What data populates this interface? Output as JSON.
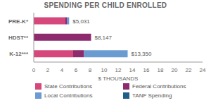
{
  "chart_data": {
    "type": "bar",
    "title": "SPENDING PER CHILD ENROLLED",
    "orientation": "horizontal",
    "stacked": true,
    "categories": [
      "PRE-K*",
      "HDST**",
      "K-12***"
    ],
    "series": [
      {
        "name": "State Contributions",
        "color": "#d6477b",
        "values": [
          4.5,
          0,
          5.6
        ]
      },
      {
        "name": "Federal Contributions",
        "color": "#8e2a6e",
        "values": [
          0.2,
          8.147,
          1.55
        ]
      },
      {
        "name": "Local Contributions",
        "color": "#6a9bd1",
        "values": [
          0.331,
          0,
          6.2
        ]
      },
      {
        "name": "TANF Spending",
        "color": "#1f5f8b",
        "values": [
          0,
          0,
          0
        ]
      }
    ],
    "totals": [
      5.031,
      8.147,
      13.35
    ],
    "total_labels": [
      "$5,031",
      "$8,147",
      "$13,350"
    ],
    "data_labels": true,
    "xlabel": "$ THOUSANDS",
    "xlim": [
      0,
      24
    ],
    "xticks": [
      0,
      2,
      4,
      6,
      8,
      10,
      12,
      14,
      16,
      18,
      20,
      22,
      24
    ],
    "grid": false,
    "legend": "bottom"
  }
}
